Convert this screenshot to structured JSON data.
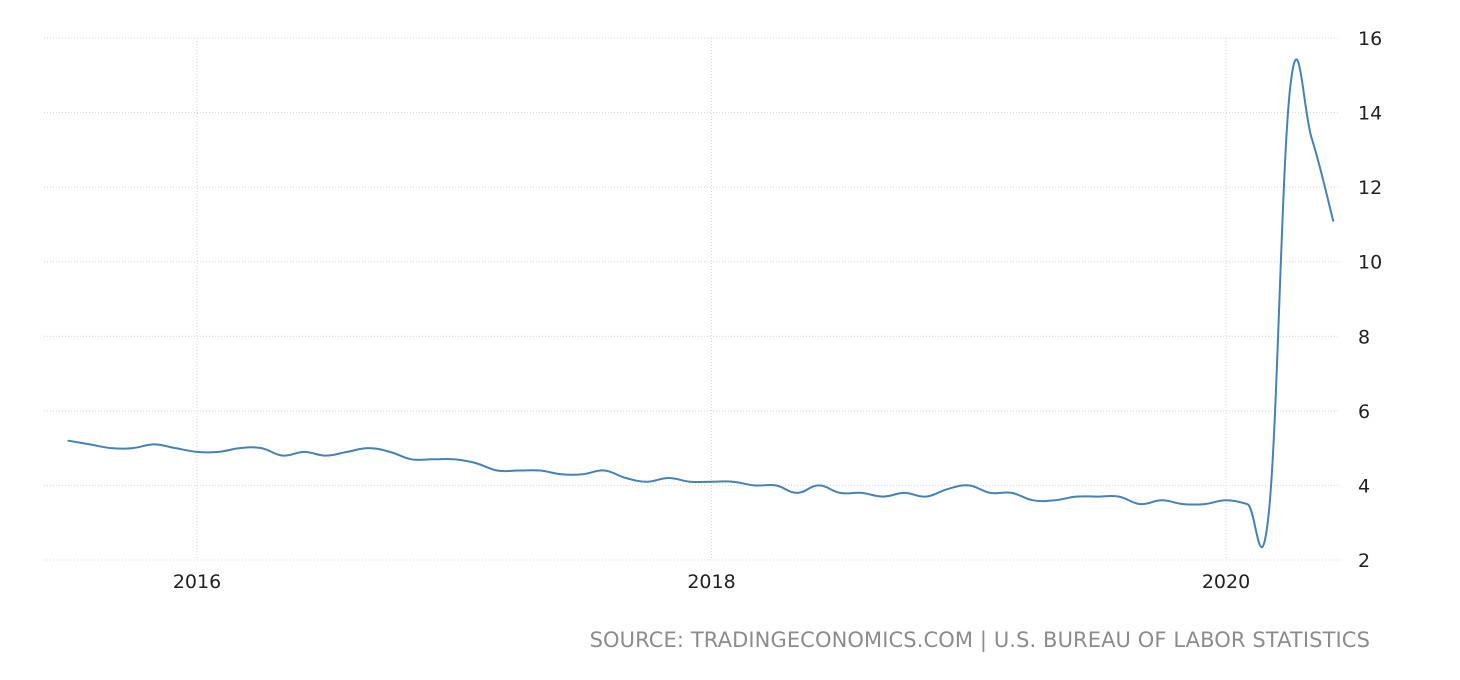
{
  "chart_data": {
    "type": "line",
    "title": "",
    "xlabel": "",
    "ylabel": "",
    "ylim": [
      2,
      16
    ],
    "y_ticks": [
      "2",
      "4",
      "6",
      "8",
      "10",
      "12",
      "14",
      "16"
    ],
    "x_ticks": [
      "2016",
      "2018",
      "2020"
    ],
    "y_axis_side": "right",
    "grid": true,
    "legend": "none",
    "series": [
      {
        "color": "#4682b4",
        "x": [
          "2015-07",
          "2015-08",
          "2015-09",
          "2015-10",
          "2015-11",
          "2015-12",
          "2016-01",
          "2016-02",
          "2016-03",
          "2016-04",
          "2016-05",
          "2016-06",
          "2016-07",
          "2016-08",
          "2016-09",
          "2016-10",
          "2016-11",
          "2016-12",
          "2017-01",
          "2017-02",
          "2017-03",
          "2017-04",
          "2017-05",
          "2017-06",
          "2017-07",
          "2017-08",
          "2017-09",
          "2017-10",
          "2017-11",
          "2017-12",
          "2018-01",
          "2018-02",
          "2018-03",
          "2018-04",
          "2018-05",
          "2018-06",
          "2018-07",
          "2018-08",
          "2018-09",
          "2018-10",
          "2018-11",
          "2018-12",
          "2019-01",
          "2019-02",
          "2019-03",
          "2019-04",
          "2019-05",
          "2019-06",
          "2019-07",
          "2019-08",
          "2019-09",
          "2019-10",
          "2019-11",
          "2019-12",
          "2020-01",
          "2020-02",
          "2020-03",
          "2020-04",
          "2020-05",
          "2020-06"
        ],
        "values": [
          5.2,
          5.1,
          5.0,
          5.0,
          5.1,
          5.0,
          4.9,
          4.9,
          5.0,
          5.0,
          4.8,
          4.9,
          4.8,
          4.9,
          5.0,
          4.9,
          4.7,
          4.7,
          4.7,
          4.6,
          4.4,
          4.4,
          4.4,
          4.3,
          4.3,
          4.4,
          4.2,
          4.1,
          4.2,
          4.1,
          4.1,
          4.1,
          4.0,
          4.0,
          3.8,
          4.0,
          3.8,
          3.8,
          3.7,
          3.8,
          3.7,
          3.9,
          4.0,
          3.8,
          3.8,
          3.6,
          3.6,
          3.7,
          3.7,
          3.7,
          3.5,
          3.6,
          3.5,
          3.5,
          3.6,
          3.5,
          3.3,
          14.7,
          13.3,
          11.1
        ]
      }
    ]
  },
  "source": {
    "text": "SOURCE: TRADINGECONOMICS.COM | U.S. BUREAU OF LABOR STATISTICS"
  }
}
